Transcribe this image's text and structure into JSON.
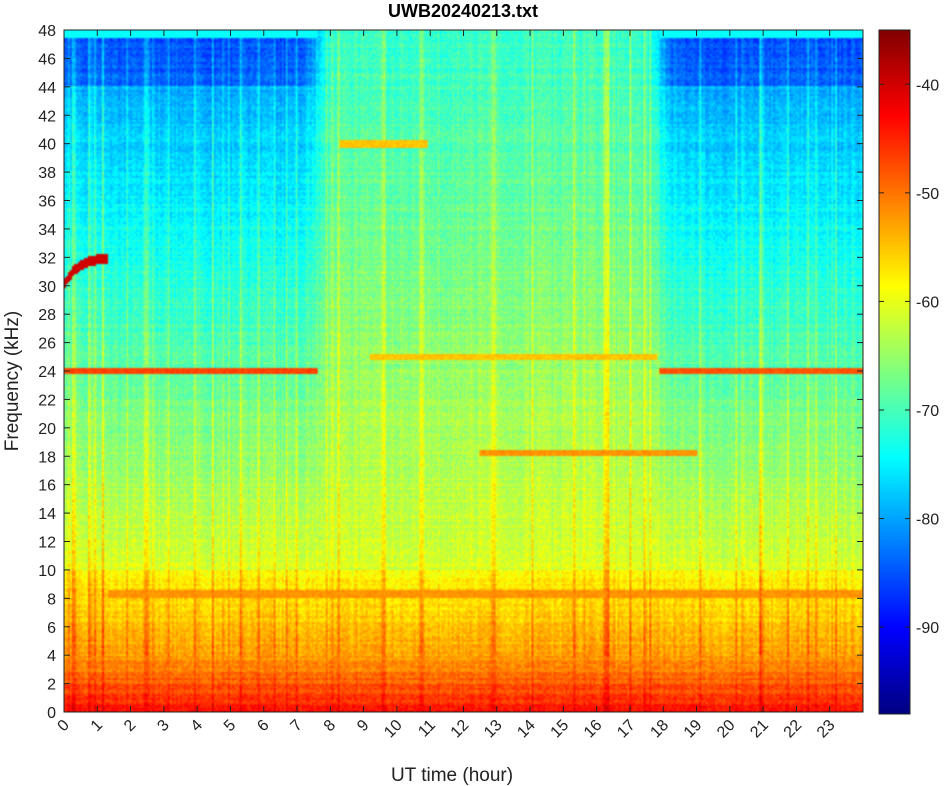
{
  "chart_data": {
    "type": "heatmap",
    "title": "UWB20240213.txt",
    "xlabel": "UT time (hour)",
    "ylabel": "Frequency (kHz)",
    "xlim": [
      0,
      24
    ],
    "ylim": [
      0,
      48
    ],
    "x_ticks": [
      "0",
      "1",
      "2",
      "3",
      "4",
      "5",
      "6",
      "7",
      "8",
      "9",
      "10",
      "11",
      "12",
      "13",
      "14",
      "15",
      "16",
      "17",
      "18",
      "19",
      "20",
      "21",
      "22",
      "23"
    ],
    "y_ticks": [
      "0",
      "2",
      "4",
      "6",
      "8",
      "10",
      "12",
      "14",
      "16",
      "18",
      "20",
      "22",
      "24",
      "26",
      "28",
      "30",
      "32",
      "34",
      "36",
      "38",
      "40",
      "42",
      "44",
      "46",
      "48"
    ],
    "colorbar": {
      "colormap": "jet",
      "range": [
        -98,
        -35
      ],
      "ticks": [
        "-40",
        "-50",
        "-60",
        "-70",
        "-80",
        "-90"
      ]
    },
    "features": [
      {
        "label": "strong low-frequency band",
        "freq_khz": [
          0,
          4
        ],
        "time_h": [
          0,
          24
        ],
        "level_db": -45
      },
      {
        "label": "narrowband line 24 kHz",
        "freq_khz": 24.0,
        "time_h": [
          0,
          7.6
        ],
        "level_db": -47
      },
      {
        "label": "narrowband line 24 kHz",
        "freq_khz": 24.0,
        "time_h": [
          17.9,
          24
        ],
        "level_db": -48
      },
      {
        "label": "line 25 kHz",
        "freq_khz": 25.0,
        "time_h": [
          9.2,
          17.8
        ],
        "level_db": -55
      },
      {
        "label": "line 18.2 kHz",
        "freq_khz": 18.2,
        "time_h": [
          12.5,
          19
        ],
        "level_db": -52
      },
      {
        "label": "line 8.3 kHz",
        "freq_khz": 8.3,
        "time_h": [
          1.3,
          24
        ],
        "level_db": -52
      },
      {
        "label": "signal 40 kHz",
        "freq_khz": 40.0,
        "time_h": [
          8.3,
          10.9
        ],
        "level_db": -55
      },
      {
        "label": "sweeping tone",
        "freq_khz": [
          30,
          32
        ],
        "time_h": [
          0,
          1.3
        ],
        "level_db": -40
      },
      {
        "label": "daytime elevated noise",
        "freq_khz": [
          10,
          48
        ],
        "time_h": [
          7.6,
          17.9
        ],
        "level_db": -72
      }
    ]
  }
}
